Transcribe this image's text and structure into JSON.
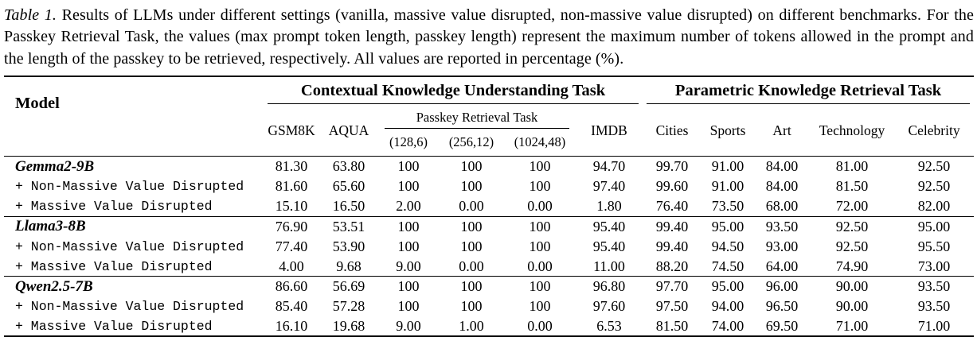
{
  "page": {
    "background_color": "#ffffff",
    "text_color": "#000000",
    "rule_color": "#000000"
  },
  "caption": {
    "label": "Table 1.",
    "text": "Results of LLMs under different settings (vanilla, massive value disrupted, non-massive value disrupted) on different benchmarks. For the Passkey Retrieval Task, the values (max prompt token length, passkey length) represent the maximum number of tokens allowed in the prompt and the length of the passkey to be retrieved, respectively. All values are reported in percentage (%)."
  },
  "table": {
    "corner_header": "Model",
    "group_headers": [
      {
        "label": "Contextual Knowledge Understanding Task",
        "colspan": 6
      },
      {
        "label": "Parametric Knowledge Retrieval Task",
        "colspan": 5
      }
    ],
    "sub_headers": {
      "left": [
        "GSM8K",
        "AQUA"
      ],
      "passkey": {
        "label": "Passkey Retrieval Task",
        "settings": [
          "(128,6)",
          "(256,12)",
          "(1024,48)"
        ]
      },
      "right": [
        "IMDB",
        "Cities",
        "Sports",
        "Art",
        "Technology",
        "Celebrity"
      ]
    },
    "groups": [
      {
        "model": "Gemma2-9B",
        "rows": [
          {
            "label": "Gemma2-9B",
            "style": "model",
            "values": [
              "81.30",
              "63.80",
              "100",
              "100",
              "100",
              "94.70",
              "99.70",
              "91.00",
              "84.00",
              "81.00",
              "92.50"
            ]
          },
          {
            "label": "+ Non-Massive Value Disrupted",
            "style": "mono",
            "values": [
              "81.60",
              "65.60",
              "100",
              "100",
              "100",
              "97.40",
              "99.60",
              "91.00",
              "84.00",
              "81.50",
              "92.50"
            ]
          },
          {
            "label": "+ Massive Value Disrupted",
            "style": "mono",
            "values": [
              "15.10",
              "16.50",
              "2.00",
              "0.00",
              "0.00",
              "1.80",
              "76.40",
              "73.50",
              "68.00",
              "72.00",
              "82.00"
            ]
          }
        ]
      },
      {
        "model": "Llama3-8B",
        "rows": [
          {
            "label": "Llama3-8B",
            "style": "model",
            "values": [
              "76.90",
              "53.51",
              "100",
              "100",
              "100",
              "95.40",
              "99.40",
              "95.00",
              "93.50",
              "92.50",
              "95.00"
            ]
          },
          {
            "label": "+ Non-Massive Value Disrupted",
            "style": "mono",
            "values": [
              "77.40",
              "53.90",
              "100",
              "100",
              "100",
              "95.40",
              "99.40",
              "94.50",
              "93.00",
              "92.50",
              "95.50"
            ]
          },
          {
            "label": "+ Massive Value Disrupted",
            "style": "mono",
            "values": [
              "4.00",
              "9.68",
              "9.00",
              "0.00",
              "0.00",
              "11.00",
              "88.20",
              "74.50",
              "64.00",
              "74.90",
              "73.00"
            ]
          }
        ]
      },
      {
        "model": "Qwen2.5-7B",
        "rows": [
          {
            "label": "Qwen2.5-7B",
            "style": "model",
            "values": [
              "86.60",
              "56.69",
              "100",
              "100",
              "100",
              "96.80",
              "97.70",
              "95.00",
              "96.00",
              "90.00",
              "93.50"
            ]
          },
          {
            "label": "+ Non-Massive Value Disrupted",
            "style": "mono",
            "values": [
              "85.40",
              "57.28",
              "100",
              "100",
              "100",
              "97.60",
              "97.50",
              "94.00",
              "96.50",
              "90.00",
              "93.50"
            ]
          },
          {
            "label": "+ Massive Value Disrupted",
            "style": "mono",
            "values": [
              "16.10",
              "19.68",
              "9.00",
              "1.00",
              "0.00",
              "6.53",
              "81.50",
              "74.00",
              "69.50",
              "71.00",
              "71.00"
            ]
          }
        ]
      }
    ]
  },
  "chart_data": {
    "type": "table",
    "title": "Table 1. Results of LLMs under different settings on different benchmarks (%)",
    "columns": [
      "Model",
      "GSM8K",
      "AQUA",
      "Passkey (128,6)",
      "Passkey (256,12)",
      "Passkey (1024,48)",
      "IMDB",
      "Cities",
      "Sports",
      "Art",
      "Technology",
      "Celebrity"
    ],
    "rows": [
      [
        "Gemma2-9B",
        81.3,
        63.8,
        100,
        100,
        100,
        94.7,
        99.7,
        91.0,
        84.0,
        81.0,
        92.5
      ],
      [
        "Gemma2-9B + Non-Massive Value Disrupted",
        81.6,
        65.6,
        100,
        100,
        100,
        97.4,
        99.6,
        91.0,
        84.0,
        81.5,
        92.5
      ],
      [
        "Gemma2-9B + Massive Value Disrupted",
        15.1,
        16.5,
        2.0,
        0.0,
        0.0,
        1.8,
        76.4,
        73.5,
        68.0,
        72.0,
        82.0
      ],
      [
        "Llama3-8B",
        76.9,
        53.51,
        100,
        100,
        100,
        95.4,
        99.4,
        95.0,
        93.5,
        92.5,
        95.0
      ],
      [
        "Llama3-8B + Non-Massive Value Disrupted",
        77.4,
        53.9,
        100,
        100,
        100,
        95.4,
        99.4,
        94.5,
        93.0,
        92.5,
        95.5
      ],
      [
        "Llama3-8B + Massive Value Disrupted",
        4.0,
        9.68,
        9.0,
        0.0,
        0.0,
        11.0,
        88.2,
        74.5,
        64.0,
        74.9,
        73.0
      ],
      [
        "Qwen2.5-7B",
        86.6,
        56.69,
        100,
        100,
        100,
        96.8,
        97.7,
        95.0,
        96.0,
        90.0,
        93.5
      ],
      [
        "Qwen2.5-7B + Non-Massive Value Disrupted",
        85.4,
        57.28,
        100,
        100,
        100,
        97.6,
        97.5,
        94.0,
        96.5,
        90.0,
        93.5
      ],
      [
        "Qwen2.5-7B + Massive Value Disrupted",
        16.1,
        19.68,
        9.0,
        1.0,
        0.0,
        6.53,
        81.5,
        74.0,
        69.5,
        71.0,
        71.0
      ]
    ]
  }
}
